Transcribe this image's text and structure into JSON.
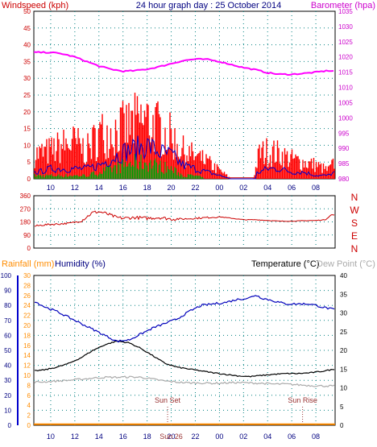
{
  "header": {
    "windspeed_label": "Windspeed (kph)",
    "title": "24 hour graph day : 25 October 2014",
    "barometer_label": "Barometer (hpa)"
  },
  "mid_header": {
    "rainfall_label": "Rainfall (mm)",
    "humidity_label": "Humidity (%)",
    "temperature_label": "Temperature (°C)",
    "dewpoint_label": "Dew Point (°C)"
  },
  "colors": {
    "windspeed": "#ff0000",
    "windaverage": "#0000cc",
    "windlow": "#009900",
    "barometer": "#ff00ff",
    "direction": "#cc0000",
    "temperature": "#000000",
    "humidity": "#0000bb",
    "dewpoint": "#aaaaaa",
    "rainfall": "#ff8c00",
    "grid": "#008080",
    "axis_blue": "#000080"
  },
  "chart_data": [
    {
      "type": "bar",
      "name": "wind-barometer",
      "x_ticks": [
        "10",
        "12",
        "14",
        "16",
        "18",
        "20",
        "22",
        "00",
        "02",
        "04",
        "06",
        "08"
      ],
      "left_axis": {
        "ticks": [
          0,
          5,
          10,
          15,
          20,
          25,
          30,
          35,
          40,
          45,
          50
        ],
        "ylim": [
          0,
          50
        ]
      },
      "right_axis": {
        "ticks": [
          980,
          985,
          990,
          995,
          1000,
          1005,
          1010,
          1015,
          1020,
          1025,
          1030,
          1035
        ],
        "ylim": [
          980,
          1035
        ]
      },
      "windspeed_hourly": [
        {
          "x": 9.0,
          "v": 9
        },
        {
          "x": 10.0,
          "v": 10
        },
        {
          "x": 11.0,
          "v": 12
        },
        {
          "x": 12.0,
          "v": 13
        },
        {
          "x": 13.0,
          "v": 10
        },
        {
          "x": 14.0,
          "v": 16
        },
        {
          "x": 15.0,
          "v": 17
        },
        {
          "x": 16.0,
          "v": 18
        },
        {
          "x": 17.0,
          "v": 20
        },
        {
          "x": 18.0,
          "v": 21
        },
        {
          "x": 19.0,
          "v": 18
        },
        {
          "x": 20.0,
          "v": 15
        },
        {
          "x": 21.0,
          "v": 10
        },
        {
          "x": 22.0,
          "v": 8
        },
        {
          "x": 23.0,
          "v": 6
        },
        {
          "x": 24.0,
          "v": 3
        },
        {
          "x": 25.0,
          "v": 0
        },
        {
          "x": 26.0,
          "v": 0
        },
        {
          "x": 26.8,
          "v": 0
        },
        {
          "x": 27.3,
          "v": 9
        },
        {
          "x": 28.0,
          "v": 10
        },
        {
          "x": 29.0,
          "v": 9
        },
        {
          "x": 30.0,
          "v": 7
        },
        {
          "x": 31.0,
          "v": 6
        },
        {
          "x": 32.0,
          "v": 5
        },
        {
          "x": 33.0,
          "v": 3
        },
        {
          "x": 33.6,
          "v": 6
        }
      ],
      "windaverage_hourly": [
        {
          "x": 9.0,
          "v": 2
        },
        {
          "x": 10.0,
          "v": 3
        },
        {
          "x": 11.0,
          "v": 3
        },
        {
          "x": 12.0,
          "v": 3
        },
        {
          "x": 13.0,
          "v": 3
        },
        {
          "x": 14.0,
          "v": 4
        },
        {
          "x": 15.0,
          "v": 6
        },
        {
          "x": 16.0,
          "v": 8
        },
        {
          "x": 17.0,
          "v": 9
        },
        {
          "x": 18.0,
          "v": 10
        },
        {
          "x": 19.0,
          "v": 8
        },
        {
          "x": 20.0,
          "v": 7
        },
        {
          "x": 21.0,
          "v": 4
        },
        {
          "x": 22.0,
          "v": 3
        },
        {
          "x": 23.0,
          "v": 2
        },
        {
          "x": 24.0,
          "v": 1
        },
        {
          "x": 25.0,
          "v": 0
        },
        {
          "x": 26.0,
          "v": 0
        },
        {
          "x": 27.3,
          "v": 2
        },
        {
          "x": 28.0,
          "v": 3
        },
        {
          "x": 29.0,
          "v": 3
        },
        {
          "x": 30.0,
          "v": 2
        },
        {
          "x": 31.0,
          "v": 2
        },
        {
          "x": 32.0,
          "v": 1
        },
        {
          "x": 33.0,
          "v": 1
        },
        {
          "x": 33.6,
          "v": 2
        }
      ],
      "windlow_hourly": [
        {
          "x": 9.0,
          "v": 1
        },
        {
          "x": 10.0,
          "v": 1
        },
        {
          "x": 11.0,
          "v": 1
        },
        {
          "x": 12.0,
          "v": 1
        },
        {
          "x": 13.0,
          "v": 1
        },
        {
          "x": 14.0,
          "v": 2
        },
        {
          "x": 15.0,
          "v": 3
        },
        {
          "x": 16.0,
          "v": 4
        },
        {
          "x": 17.0,
          "v": 5
        },
        {
          "x": 18.0,
          "v": 5
        },
        {
          "x": 19.0,
          "v": 4
        },
        {
          "x": 20.0,
          "v": 3
        },
        {
          "x": 21.0,
          "v": 1
        },
        {
          "x": 22.0,
          "v": 1
        },
        {
          "x": 23.0,
          "v": 0
        },
        {
          "x": 24.0,
          "v": 0
        },
        {
          "x": 33.6,
          "v": 0
        }
      ],
      "barometer": [
        {
          "x": 8.6,
          "v": 1021.5
        },
        {
          "x": 10.0,
          "v": 1021.5
        },
        {
          "x": 11.0,
          "v": 1021
        },
        {
          "x": 12.0,
          "v": 1020
        },
        {
          "x": 13.0,
          "v": 1018.5
        },
        {
          "x": 14.0,
          "v": 1017
        },
        {
          "x": 15.0,
          "v": 1016
        },
        {
          "x": 16.0,
          "v": 1015.3
        },
        {
          "x": 17.0,
          "v": 1015.5
        },
        {
          "x": 18.0,
          "v": 1016
        },
        {
          "x": 19.0,
          "v": 1016.8
        },
        {
          "x": 20.0,
          "v": 1017.8
        },
        {
          "x": 21.0,
          "v": 1018.8
        },
        {
          "x": 22.0,
          "v": 1019.3
        },
        {
          "x": 23.0,
          "v": 1019.2
        },
        {
          "x": 24.0,
          "v": 1018.5
        },
        {
          "x": 25.0,
          "v": 1017.5
        },
        {
          "x": 26.0,
          "v": 1016.5
        },
        {
          "x": 27.0,
          "v": 1015.8
        },
        {
          "x": 28.0,
          "v": 1014.8
        },
        {
          "x": 29.0,
          "v": 1014.3
        },
        {
          "x": 30.0,
          "v": 1014.3
        },
        {
          "x": 31.0,
          "v": 1014.6
        },
        {
          "x": 32.0,
          "v": 1015
        },
        {
          "x": 33.0,
          "v": 1015.5
        },
        {
          "x": 33.6,
          "v": 1015.3
        }
      ]
    },
    {
      "type": "line",
      "name": "wind-direction",
      "x_ticks": [
        "10",
        "12",
        "14",
        "16",
        "18",
        "20",
        "22",
        "00",
        "02",
        "04",
        "06",
        "08"
      ],
      "left_axis": {
        "ticks": [
          0,
          90,
          180,
          270,
          360
        ],
        "ylim": [
          0,
          360
        ]
      },
      "compass_labels": [
        "N",
        "W",
        "S",
        "E",
        "N"
      ],
      "direction": [
        {
          "x": 8.6,
          "v": 150
        },
        {
          "x": 9.5,
          "v": 160
        },
        {
          "x": 10.5,
          "v": 165
        },
        {
          "x": 11.5,
          "v": 170
        },
        {
          "x": 12.5,
          "v": 185
        },
        {
          "x": 13.0,
          "v": 215
        },
        {
          "x": 13.5,
          "v": 245
        },
        {
          "x": 14.0,
          "v": 250
        },
        {
          "x": 14.5,
          "v": 240
        },
        {
          "x": 15.0,
          "v": 225
        },
        {
          "x": 15.5,
          "v": 210
        },
        {
          "x": 16.0,
          "v": 205
        },
        {
          "x": 17.0,
          "v": 210
        },
        {
          "x": 18.0,
          "v": 205
        },
        {
          "x": 19.0,
          "v": 210
        },
        {
          "x": 20.0,
          "v": 200
        },
        {
          "x": 21.0,
          "v": 200
        },
        {
          "x": 22.0,
          "v": 205
        },
        {
          "x": 23.0,
          "v": 210
        },
        {
          "x": 24.0,
          "v": 215
        },
        {
          "x": 25.0,
          "v": 205
        },
        {
          "x": 26.0,
          "v": 195
        },
        {
          "x": 27.0,
          "v": 195
        },
        {
          "x": 28.0,
          "v": 190
        },
        {
          "x": 29.0,
          "v": 185
        },
        {
          "x": 30.0,
          "v": 185
        },
        {
          "x": 31.0,
          "v": 188
        },
        {
          "x": 32.0,
          "v": 190
        },
        {
          "x": 32.8,
          "v": 195
        },
        {
          "x": 33.3,
          "v": 230
        },
        {
          "x": 33.6,
          "v": 225
        }
      ]
    },
    {
      "type": "line",
      "name": "temperature-humidity",
      "x_ticks": [
        "10",
        "12",
        "14",
        "16",
        "18",
        "20",
        "22",
        "00",
        "02",
        "04",
        "06",
        "08"
      ],
      "day_label": "Sun 26",
      "sunset": {
        "label": "Sun Set",
        "x": 19.7
      },
      "sunrise": {
        "label": "Sun Rise",
        "x": 30.9
      },
      "humidity_axis": {
        "ticks": [
          0,
          10,
          20,
          30,
          40,
          50,
          60,
          70,
          80,
          90,
          100
        ],
        "ylim": [
          0,
          100
        ]
      },
      "rainfall_axis": {
        "ticks": [
          0,
          2,
          4,
          6,
          8,
          10,
          12,
          14,
          16,
          18,
          20,
          22,
          24,
          26,
          28,
          30
        ],
        "ylim": [
          0,
          30
        ]
      },
      "temperature_axis": {
        "ticks": [
          0,
          5,
          10,
          15,
          20,
          25,
          30,
          35,
          40
        ],
        "ylim": [
          0,
          40
        ]
      },
      "humidity": [
        {
          "x": 8.6,
          "v": 83
        },
        {
          "x": 9.5,
          "v": 79
        },
        {
          "x": 10.5,
          "v": 76
        },
        {
          "x": 11.5,
          "v": 72
        },
        {
          "x": 12.5,
          "v": 68
        },
        {
          "x": 13.5,
          "v": 64
        },
        {
          "x": 14.5,
          "v": 60
        },
        {
          "x": 15.5,
          "v": 56
        },
        {
          "x": 16.5,
          "v": 57
        },
        {
          "x": 17.5,
          "v": 61
        },
        {
          "x": 18.5,
          "v": 65
        },
        {
          "x": 19.5,
          "v": 68
        },
        {
          "x": 20.5,
          "v": 71
        },
        {
          "x": 21.5,
          "v": 76
        },
        {
          "x": 22.5,
          "v": 80
        },
        {
          "x": 23.5,
          "v": 81
        },
        {
          "x": 24.5,
          "v": 82
        },
        {
          "x": 25.5,
          "v": 84
        },
        {
          "x": 26.5,
          "v": 85
        },
        {
          "x": 27.0,
          "v": 87
        },
        {
          "x": 27.5,
          "v": 85
        },
        {
          "x": 28.5,
          "v": 83
        },
        {
          "x": 29.5,
          "v": 81
        },
        {
          "x": 30.5,
          "v": 81
        },
        {
          "x": 31.5,
          "v": 81
        },
        {
          "x": 32.5,
          "v": 79
        },
        {
          "x": 33.6,
          "v": 77
        }
      ],
      "temperature": [
        {
          "x": 8.6,
          "v": 14.5
        },
        {
          "x": 9.5,
          "v": 14.8
        },
        {
          "x": 10.5,
          "v": 15.5
        },
        {
          "x": 11.5,
          "v": 16.5
        },
        {
          "x": 12.5,
          "v": 18
        },
        {
          "x": 13.5,
          "v": 20
        },
        {
          "x": 14.5,
          "v": 21.5
        },
        {
          "x": 15.5,
          "v": 22.5
        },
        {
          "x": 16.5,
          "v": 22
        },
        {
          "x": 17.5,
          "v": 20.5
        },
        {
          "x": 18.5,
          "v": 18.5
        },
        {
          "x": 19.5,
          "v": 16.5
        },
        {
          "x": 20.5,
          "v": 15.5
        },
        {
          "x": 21.5,
          "v": 15
        },
        {
          "x": 22.5,
          "v": 14.5
        },
        {
          "x": 23.5,
          "v": 14
        },
        {
          "x": 24.5,
          "v": 13.6
        },
        {
          "x": 25.5,
          "v": 13.2
        },
        {
          "x": 26.5,
          "v": 13
        },
        {
          "x": 27.5,
          "v": 13.3
        },
        {
          "x": 28.5,
          "v": 13.6
        },
        {
          "x": 29.5,
          "v": 13.8
        },
        {
          "x": 30.5,
          "v": 13.8
        },
        {
          "x": 31.5,
          "v": 14
        },
        {
          "x": 32.5,
          "v": 14.4
        },
        {
          "x": 33.6,
          "v": 15
        }
      ],
      "dewpoint": [
        {
          "x": 8.6,
          "v": 11.5
        },
        {
          "x": 9.5,
          "v": 11.6
        },
        {
          "x": 10.5,
          "v": 11.8
        },
        {
          "x": 11.5,
          "v": 12
        },
        {
          "x": 12.5,
          "v": 12.3
        },
        {
          "x": 13.5,
          "v": 12.6
        },
        {
          "x": 14.5,
          "v": 12.8
        },
        {
          "x": 15.5,
          "v": 12.8
        },
        {
          "x": 16.5,
          "v": 12.9
        },
        {
          "x": 17.5,
          "v": 12.8
        },
        {
          "x": 18.5,
          "v": 12.3
        },
        {
          "x": 19.5,
          "v": 11.8
        },
        {
          "x": 20.5,
          "v": 11.5
        },
        {
          "x": 21.5,
          "v": 11.3
        },
        {
          "x": 22.5,
          "v": 11.3
        },
        {
          "x": 23.5,
          "v": 11.2
        },
        {
          "x": 24.5,
          "v": 11.3
        },
        {
          "x": 25.5,
          "v": 11.4
        },
        {
          "x": 26.5,
          "v": 11.3
        },
        {
          "x": 27.5,
          "v": 11.2
        },
        {
          "x": 28.5,
          "v": 11
        },
        {
          "x": 29.5,
          "v": 11
        },
        {
          "x": 30.5,
          "v": 10.8
        },
        {
          "x": 31.5,
          "v": 10.6
        },
        {
          "x": 32.5,
          "v": 10.5
        },
        {
          "x": 33.6,
          "v": 10.5
        }
      ],
      "rainfall": [
        {
          "x": 8.6,
          "v": 0.2
        },
        {
          "x": 33.6,
          "v": 0.2
        }
      ]
    }
  ]
}
